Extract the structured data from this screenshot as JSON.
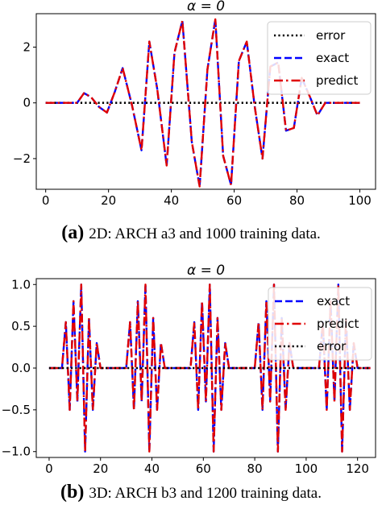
{
  "chart_data": [
    {
      "type": "line",
      "title": "α = 0",
      "xlabel": "",
      "ylabel": "",
      "xlim": [
        -3,
        105
      ],
      "ylim": [
        -3.1,
        3.2
      ],
      "xticks": [
        0,
        20,
        40,
        60,
        80,
        100
      ],
      "yticks": [
        -2,
        0,
        2
      ],
      "ytick_labels": [
        "−2",
        "0",
        "2"
      ],
      "legend_position": "upper-right",
      "grid": false,
      "series": [
        {
          "name": "error",
          "color": "#000000",
          "style": "dotted",
          "x": [
            0,
            10,
            20,
            30,
            40,
            50,
            60,
            70,
            80,
            90,
            100
          ],
          "y": [
            0,
            0,
            0,
            0,
            0,
            0,
            0,
            0,
            0,
            0,
            0
          ]
        },
        {
          "name": "exact",
          "color": "#0000ff",
          "style": "dashed",
          "x": [
            0,
            10,
            12.2,
            14.5,
            17,
            19.5,
            22,
            24.5,
            27.5,
            30.5,
            33,
            35.5,
            38.5,
            41,
            43.5,
            46.5,
            49,
            51.5,
            54,
            56.5,
            59,
            61.5,
            64,
            66.5,
            69,
            71.5,
            74,
            76.5,
            79,
            81.5,
            84,
            86.5,
            89,
            90.5,
            100
          ],
          "y": [
            0,
            0,
            0.35,
            0.2,
            -0.15,
            -0.35,
            0.4,
            1.25,
            -0.1,
            -1.7,
            2.2,
            0.5,
            -2.25,
            1.8,
            2.95,
            -1.4,
            -3.0,
            1.2,
            3.0,
            -1.9,
            -2.95,
            1.5,
            2.2,
            -0.1,
            -2.0,
            1.3,
            1.45,
            -1.0,
            -0.9,
            0.9,
            0.25,
            -0.45,
            0.0,
            0,
            0
          ]
        },
        {
          "name": "predict",
          "color": "#e00000",
          "style": "dashdot",
          "x": [
            0,
            10,
            12.2,
            14.5,
            17,
            19.5,
            22,
            24.5,
            27.5,
            30.5,
            33,
            35.5,
            38.5,
            41,
            43.5,
            46.5,
            49,
            51.5,
            54,
            56.5,
            59,
            61.5,
            64,
            66.5,
            69,
            71.5,
            74,
            76.5,
            79,
            81.5,
            84,
            86.5,
            89,
            90.5,
            100
          ],
          "y": [
            0,
            0,
            0.35,
            0.2,
            -0.15,
            -0.35,
            0.4,
            1.25,
            -0.1,
            -1.7,
            2.2,
            0.5,
            -2.25,
            1.8,
            2.95,
            -1.4,
            -3.0,
            1.2,
            3.0,
            -1.9,
            -2.95,
            1.5,
            2.2,
            -0.1,
            -2.0,
            1.3,
            1.45,
            -1.0,
            -0.9,
            0.9,
            0.25,
            -0.45,
            0.0,
            0,
            0
          ]
        }
      ],
      "caption": {
        "letter": "(a)",
        "text": "2D: ARCH a3 and 1000 training data."
      }
    },
    {
      "type": "line",
      "title": "α = 0",
      "xlabel": "",
      "ylabel": "",
      "xlim": [
        -5,
        127
      ],
      "ylim": [
        -1.07,
        1.07
      ],
      "xticks": [
        0,
        20,
        40,
        60,
        80,
        100,
        120
      ],
      "yticks": [
        -1.0,
        -0.5,
        0.0,
        0.5,
        1.0
      ],
      "ytick_labels": [
        "−1.0",
        "−0.5",
        "0.0",
        "0.5",
        "1.0"
      ],
      "legend_position": "upper-right",
      "grid": false,
      "series": [
        {
          "name": "exact",
          "color": "#0000ff",
          "style": "dashed",
          "x": [
            0,
            5,
            6.5,
            8,
            9.5,
            11,
            12.5,
            14,
            15.5,
            17,
            18.5,
            20,
            30,
            31.5,
            33,
            34.5,
            36,
            37.5,
            39,
            40.5,
            42,
            43.5,
            45,
            55,
            56.5,
            58,
            59.5,
            61,
            62.5,
            64,
            65.5,
            67,
            68.5,
            70,
            80,
            81.5,
            83,
            84.5,
            86,
            87.5,
            89,
            90.5,
            92,
            93.5,
            95,
            105,
            106.5,
            108,
            109.5,
            111,
            112.5,
            114,
            115.5,
            117,
            118.5,
            120,
            125
          ],
          "y": [
            0,
            0,
            0.55,
            -0.5,
            0.8,
            -0.4,
            1.0,
            -1.0,
            0.6,
            -0.5,
            0.3,
            0,
            0,
            0.55,
            -0.5,
            0.8,
            -0.4,
            1.0,
            -1.0,
            0.6,
            -0.5,
            0.3,
            0,
            0,
            0.55,
            -0.5,
            0.8,
            -0.4,
            1.0,
            -1.0,
            0.6,
            -0.5,
            0.3,
            0,
            0,
            0.55,
            -0.5,
            0.8,
            -0.4,
            1.0,
            -1.0,
            0.6,
            -0.5,
            0.3,
            0,
            0,
            0.55,
            -0.5,
            0.8,
            -0.4,
            1.0,
            -1.0,
            0.6,
            -0.5,
            0.3,
            0,
            0
          ]
        },
        {
          "name": "predict",
          "color": "#e00000",
          "style": "dashdot",
          "x": [
            0,
            5,
            6.5,
            8,
            9.5,
            11,
            12.5,
            14,
            15.5,
            17,
            18.5,
            20,
            30,
            31.5,
            33,
            34.5,
            36,
            37.5,
            39,
            40.5,
            42,
            43.5,
            45,
            55,
            56.5,
            58,
            59.5,
            61,
            62.5,
            64,
            65.5,
            67,
            68.5,
            70,
            80,
            81.5,
            83,
            84.5,
            86,
            87.5,
            89,
            90.5,
            92,
            93.5,
            95,
            105,
            106.5,
            108,
            109.5,
            111,
            112.5,
            114,
            115.5,
            117,
            118.5,
            120,
            125
          ],
          "y": [
            0,
            0,
            0.55,
            -0.5,
            0.8,
            -0.4,
            1.0,
            -1.0,
            0.6,
            -0.5,
            0.3,
            0,
            0,
            0.55,
            -0.5,
            0.8,
            -0.4,
            1.0,
            -1.0,
            0.6,
            -0.5,
            0.3,
            0,
            0,
            0.55,
            -0.5,
            0.8,
            -0.4,
            1.0,
            -1.0,
            0.6,
            -0.5,
            0.3,
            0,
            0,
            0.55,
            -0.5,
            0.8,
            -0.4,
            1.0,
            -1.0,
            0.6,
            -0.5,
            0.3,
            0,
            0,
            0.55,
            -0.5,
            0.8,
            -0.4,
            1.0,
            -1.0,
            0.6,
            -0.5,
            0.3,
            0,
            0
          ]
        },
        {
          "name": "error",
          "color": "#000000",
          "style": "dotted",
          "x": [
            0,
            20,
            40,
            60,
            80,
            100,
            120,
            125
          ],
          "y": [
            0,
            0,
            0,
            0,
            0,
            0,
            0,
            0
          ]
        }
      ],
      "caption": {
        "letter": "(b)",
        "text": "3D: ARCH b3 and 1200 training data."
      }
    }
  ]
}
